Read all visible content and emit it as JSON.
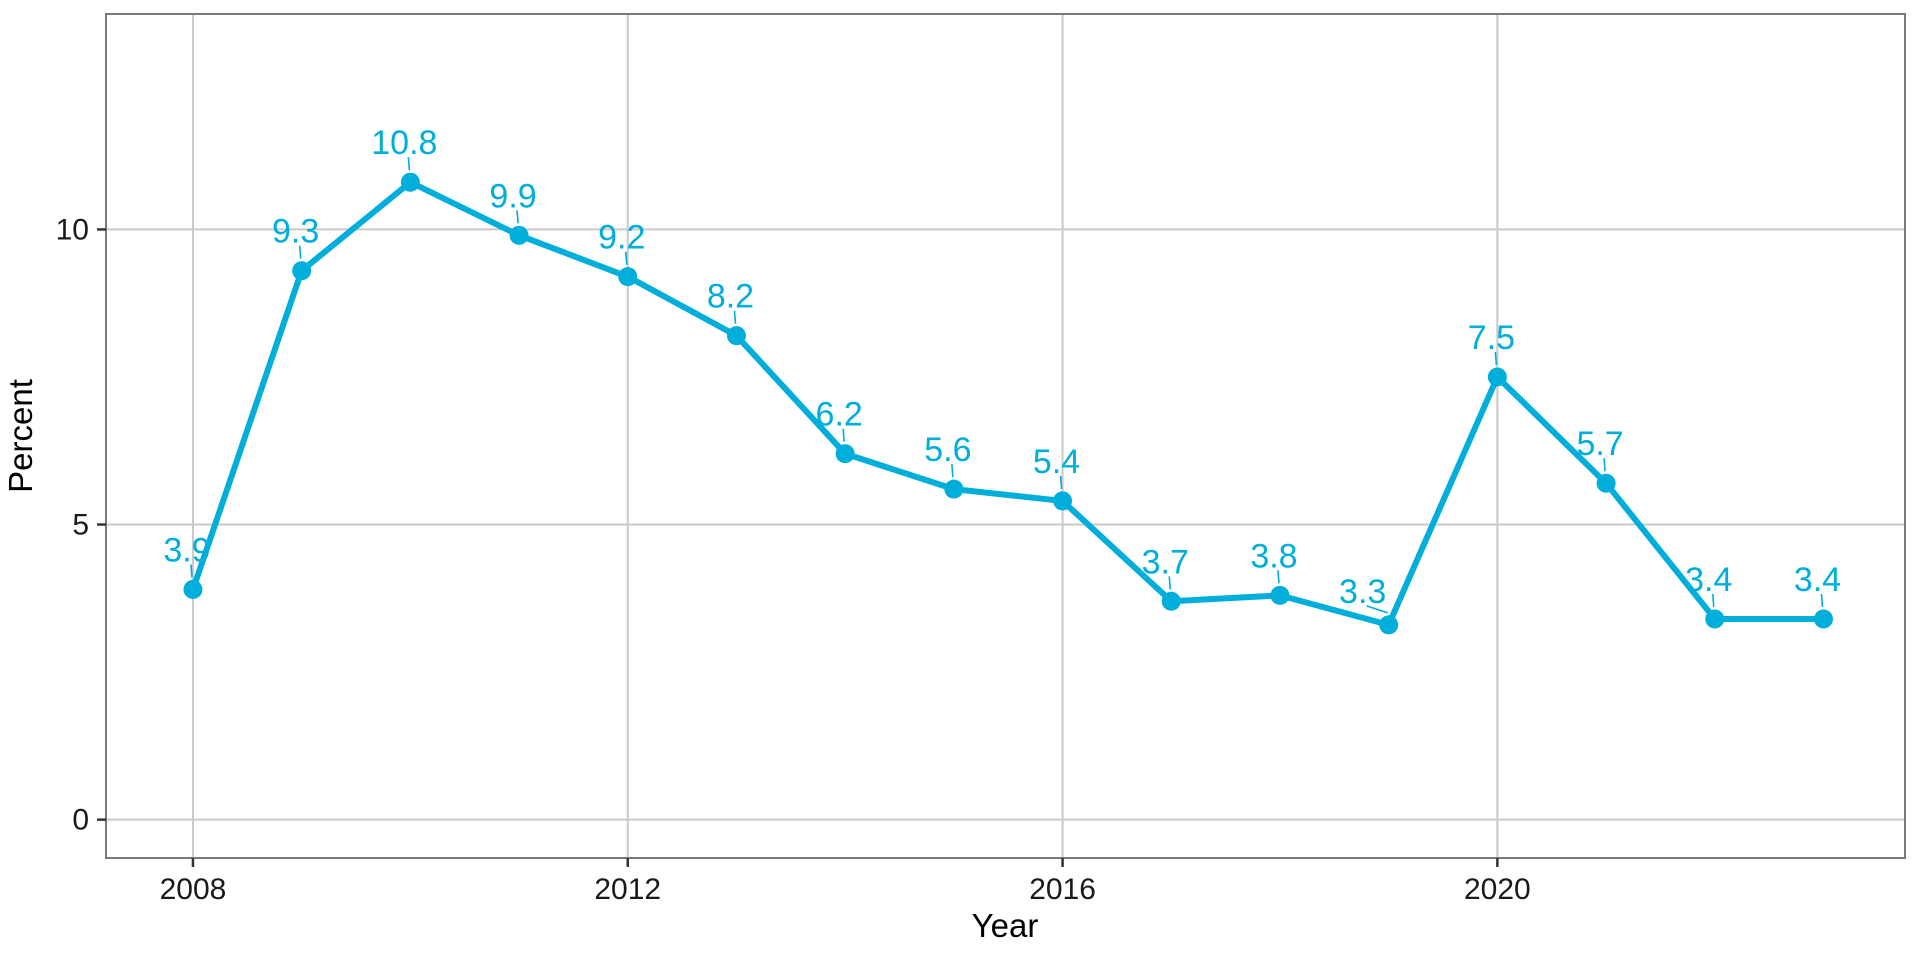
{
  "chart_data": {
    "type": "line",
    "title": "",
    "xlabel": "Year",
    "ylabel": "Percent",
    "x": [
      2008,
      2009,
      2010,
      2011,
      2012,
      2013,
      2014,
      2015,
      2016,
      2017,
      2018,
      2019,
      2020,
      2021,
      2022,
      2023
    ],
    "series": [
      {
        "name": "Percent",
        "values": [
          3.9,
          9.3,
          10.8,
          9.9,
          9.2,
          8.2,
          6.2,
          5.6,
          5.4,
          3.7,
          3.8,
          3.3,
          7.5,
          5.7,
          3.4,
          3.4
        ],
        "point_labels": [
          "3.9",
          "9.3",
          "10.8",
          "9.9",
          "9.2",
          "8.2",
          "6.2",
          "5.6",
          "5.4",
          "3.7",
          "3.8",
          "3.3",
          "7.5",
          "5.7",
          "3.4",
          "3.4"
        ]
      }
    ],
    "x_tick_labels": [
      "2008",
      "2012",
      "2016",
      "2020"
    ],
    "x_tick_values": [
      2008,
      2012,
      2016,
      2020
    ],
    "y_tick_labels": [
      "0",
      "5",
      "10"
    ],
    "y_tick_values": [
      0,
      5,
      10
    ],
    "xlim": [
      2007.2,
      2023.75
    ],
    "ylim": [
      -0.65,
      13.65
    ],
    "grid": "major-only, no minor gridlines",
    "legend": "none",
    "colors": {
      "line": "#00AEDB",
      "point": "#00AEDB",
      "data_label": "#00AEDB",
      "grid_major": "#c9c9c9",
      "panel_border": "#7a7a7a",
      "tick_mark": "#333333",
      "tick_label": "#1a1a1a",
      "axis_title": "#000000",
      "background": "#ffffff"
    }
  }
}
